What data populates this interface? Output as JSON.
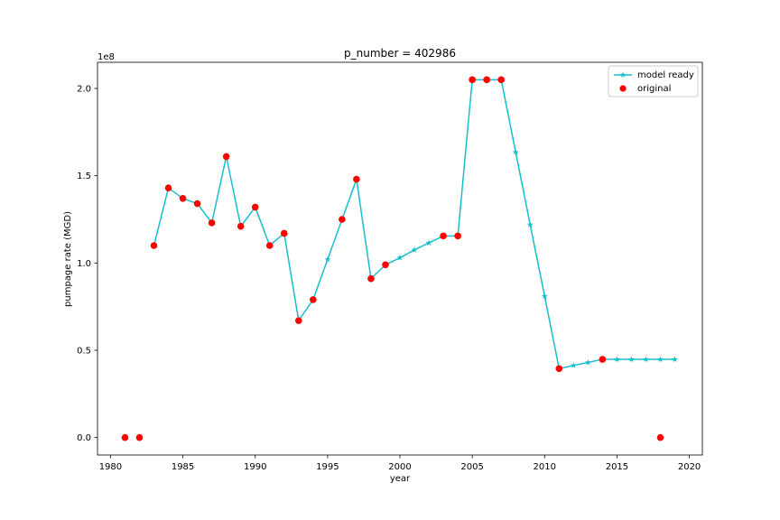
{
  "chart_data": {
    "type": "line",
    "title": "p_number = 402986",
    "xlabel": "year",
    "ylabel": "pumpage rate (MGD)",
    "y_offset_label": "1e8",
    "xlim": [
      1979.1,
      2020.9
    ],
    "ylim": [
      -10000000,
      215000000
    ],
    "x_ticks": [
      1980,
      1985,
      1990,
      1995,
      2000,
      2005,
      2010,
      2015,
      2020
    ],
    "x_tick_labels": [
      "1980",
      "1985",
      "1990",
      "1995",
      "2000",
      "2005",
      "2010",
      "2015",
      "2020"
    ],
    "y_ticks": [
      0,
      50000000,
      100000000,
      150000000,
      200000000
    ],
    "y_tick_labels": [
      "0.0",
      "0.5",
      "1.0",
      "1.5",
      "2.0"
    ],
    "grid": false,
    "legend_position": "top-right",
    "series": [
      {
        "name": "model ready",
        "style": "line-star",
        "color": "#17becf",
        "x": [
          1983,
          1984,
          1985,
          1986,
          1987,
          1988,
          1989,
          1990,
          1991,
          1992,
          1993,
          1994,
          1995,
          1996,
          1997,
          1998,
          1999,
          2000,
          2001,
          2002,
          2003,
          2004,
          2005,
          2006,
          2007,
          2008,
          2009,
          2010,
          2011,
          2012,
          2013,
          2014,
          2015,
          2016,
          2017,
          2018,
          2019
        ],
        "y": [
          110000000,
          143000000,
          137000000,
          134000000,
          123000000,
          161000000,
          121000000,
          132000000,
          110000000,
          117000000,
          67000000,
          79000000,
          102000000,
          125000000,
          148000000,
          91000000,
          99000000,
          103000000,
          107500000,
          111500000,
          115500000,
          115500000,
          205000000,
          205000000,
          205000000,
          163500000,
          122000000,
          81000000,
          39500000,
          41300000,
          43000000,
          44800000,
          44800000,
          44800000,
          44800000,
          44800000,
          44800000
        ]
      },
      {
        "name": "original",
        "style": "marker-circle",
        "color": "#ff0000",
        "x": [
          1981,
          1982,
          1983,
          1984,
          1985,
          1986,
          1987,
          1988,
          1989,
          1990,
          1991,
          1992,
          1993,
          1994,
          1996,
          1997,
          1998,
          1999,
          2003,
          2004,
          2005,
          2006,
          2007,
          2011,
          2014,
          2018
        ],
        "y": [
          0,
          0,
          110000000,
          143000000,
          137000000,
          134000000,
          123000000,
          161000000,
          121000000,
          132000000,
          110000000,
          117000000,
          67000000,
          79000000,
          125000000,
          148000000,
          91000000,
          99000000,
          115500000,
          115500000,
          205000000,
          205000000,
          205000000,
          39500000,
          44800000,
          0
        ]
      }
    ]
  }
}
